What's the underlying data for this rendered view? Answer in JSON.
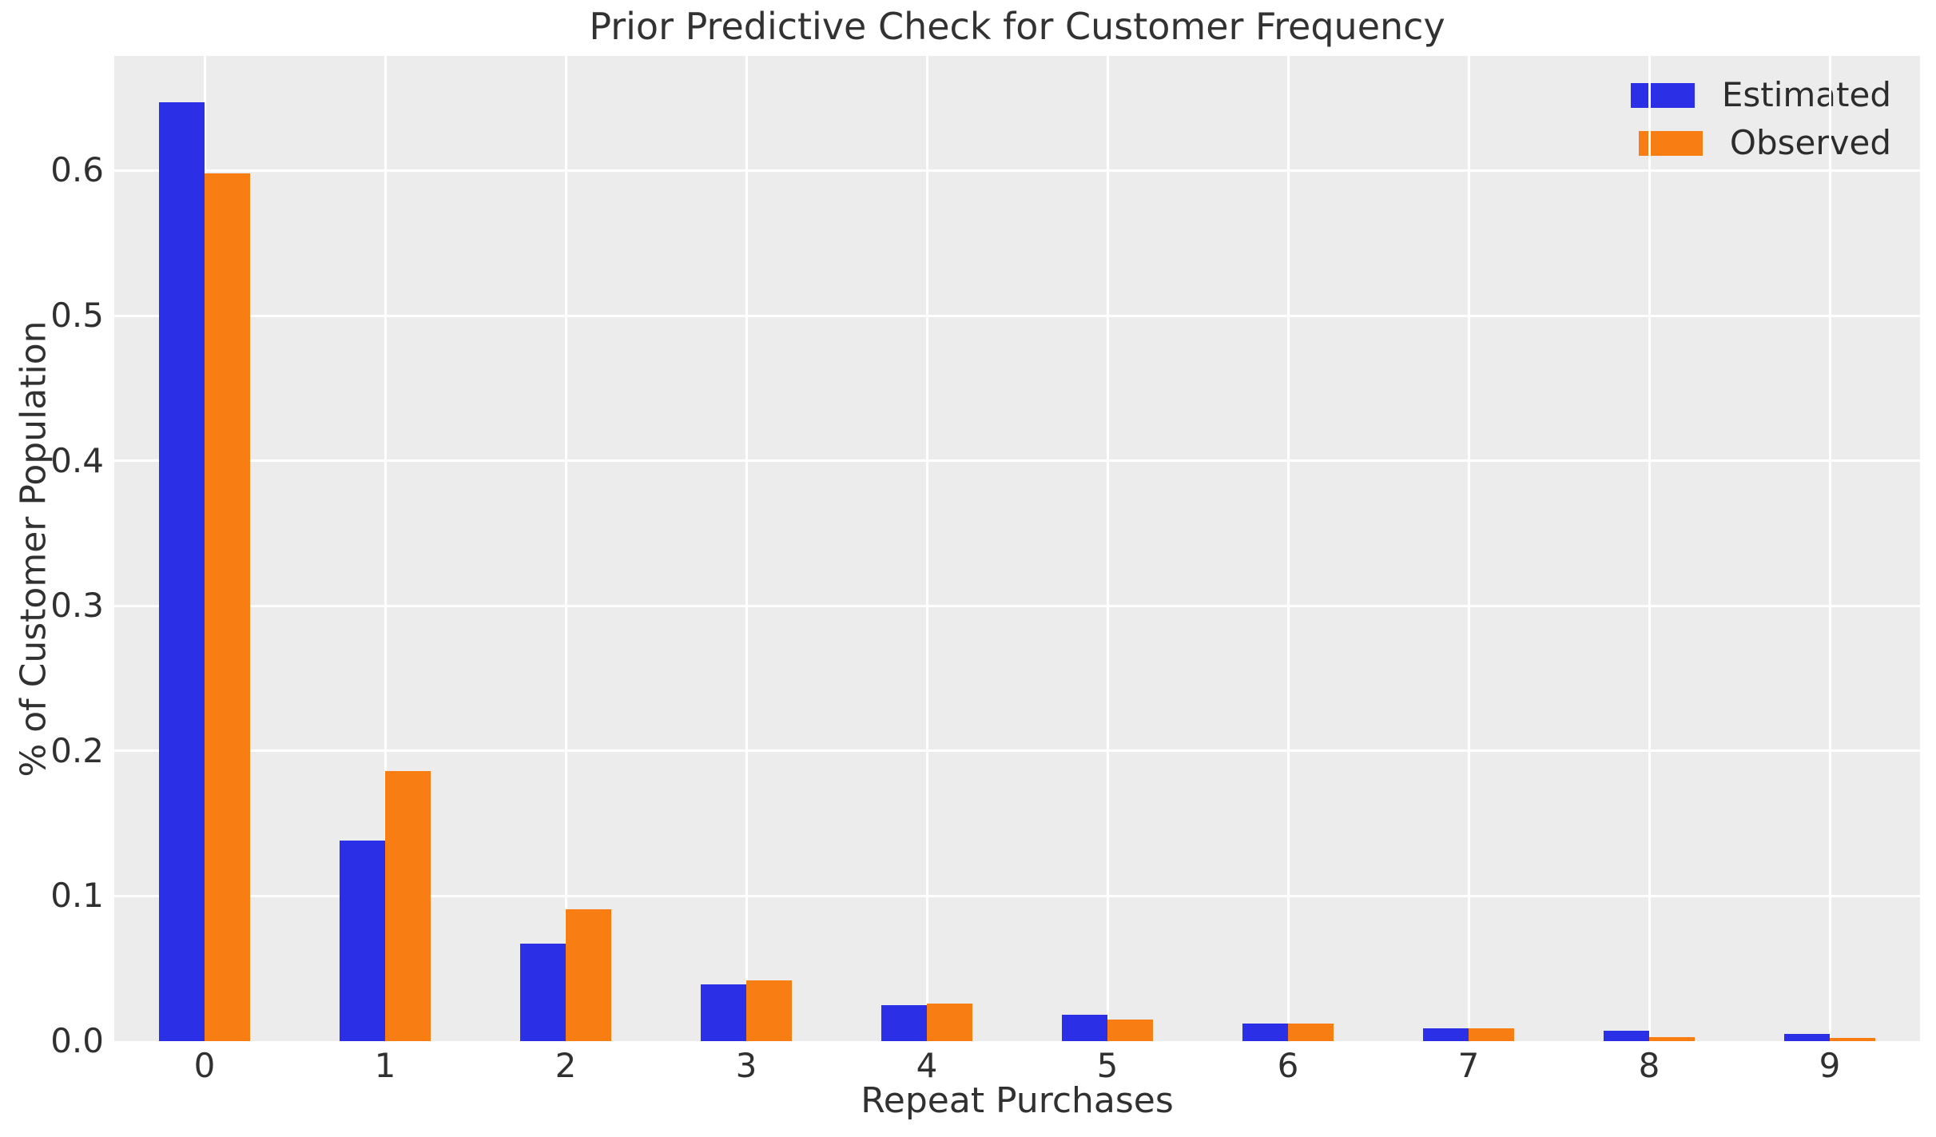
{
  "chart_data": {
    "type": "bar",
    "title": "Prior Predictive Check for Customer Frequency",
    "xlabel": "Repeat Purchases",
    "ylabel": "% of Customer Population",
    "categories": [
      "0",
      "1",
      "2",
      "3",
      "4",
      "5",
      "6",
      "7",
      "8",
      "9"
    ],
    "series": [
      {
        "name": "Estimated",
        "color": "#2B2FE6",
        "values": [
          0.647,
          0.138,
          0.067,
          0.039,
          0.025,
          0.018,
          0.012,
          0.009,
          0.007,
          0.005
        ]
      },
      {
        "name": "Observed",
        "color": "#F87D12",
        "values": [
          0.598,
          0.186,
          0.091,
          0.042,
          0.026,
          0.015,
          0.012,
          0.009,
          0.003,
          0.002
        ]
      }
    ],
    "ylim": [
      0,
      0.679
    ],
    "yticks": [
      0.0,
      0.1,
      0.2,
      0.3,
      0.4,
      0.5,
      0.6
    ],
    "ytick_labels": [
      "0.0",
      "0.1",
      "0.2",
      "0.3",
      "0.4",
      "0.5",
      "0.6"
    ],
    "grid": true,
    "legend_position": "upper right",
    "style": {
      "figure_bg": "#FFFFFF",
      "plot_bg": "#ECECEC",
      "grid_color": "#FFFFFF",
      "text_color": "#313131"
    }
  }
}
